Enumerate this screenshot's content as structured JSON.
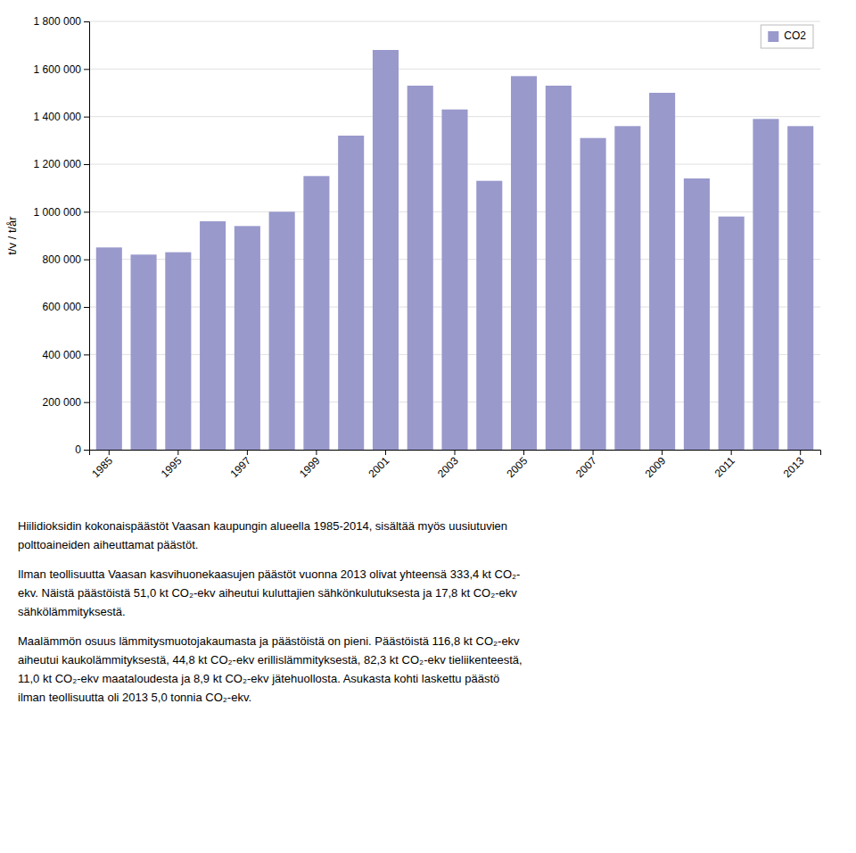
{
  "chart_data": {
    "type": "bar",
    "categories": [
      "1985",
      null,
      "1995",
      null,
      "1997",
      null,
      "1999",
      null,
      "2001",
      null,
      "2003",
      null,
      "2005",
      null,
      "2007",
      null,
      "2009",
      null,
      "2011",
      null,
      "2013"
    ],
    "values": [
      850000,
      820000,
      830000,
      960000,
      940000,
      1000000,
      1150000,
      1320000,
      1680000,
      1530000,
      1430000,
      1130000,
      1570000,
      1530000,
      1310000,
      1360000,
      1500000,
      1140000,
      980000,
      1390000,
      1360000
    ],
    "color": "#9999cc",
    "y_label": "t/v / t/år",
    "ylim": [
      0,
      1800000
    ],
    "yticks": [
      0,
      {
        "value": 200000,
        "label": "200 000"
      },
      {
        "value": 400000,
        "label": "400 000"
      },
      {
        "value": 600000,
        "label": "600 000"
      },
      {
        "value": 800000,
        "label": "800 000"
      },
      {
        "value": 1000000,
        "label": "1 000 000"
      },
      {
        "value": 1200000,
        "label": "1 200 000"
      },
      {
        "value": 1400000,
        "label": "1 400 000"
      },
      {
        "value": 1600000,
        "label": "1 600 000"
      },
      {
        "value": 1800000,
        "label": "1 800 000"
      }
    ],
    "grid": true,
    "legend": "upper-right",
    "series_name": "CO2",
    "annotations": [
      [
        "Hiilidioksidin kokonaispäästöt Vaasan kaupungin alueella 1985-2014, sisältää myös uusiutuvien",
        "polttoaineiden aiheuttamat päästöt."
      ],
      [
        "Ilman teollisuutta Vaasan kasvihuonekaasujen päästöt vuonna 2013 olivat yhteensä 333,4 kt CO₂-",
        "ekv. Näistä päästöistä 51,0 kt CO₂-ekv aiheutui kuluttajien sähkönkulutuksesta ja 17,8 kt CO₂-ekv",
        "sähkölämmityksestä."
      ],
      [
        "Maalämmön osuus lämmitysmuotojakaumasta ja päästöistä on pieni. Päästöistä 116,8 kt CO₂-ekv",
        "aiheutui kaukolämmityksestä, 44,8 kt CO₂-ekv erillislämmityksestä, 82,3 kt CO₂-ekv tieliikenteestä,",
        "11,0 kt CO₂-ekv maataloudesta ja 8,9 kt CO₂-ekv jätehuollosta. Asukasta kohti laskettu päästö",
        "ilman teollisuutta oli 2013 5,0 tonnia CO₂-ekv."
      ]
    ]
  }
}
